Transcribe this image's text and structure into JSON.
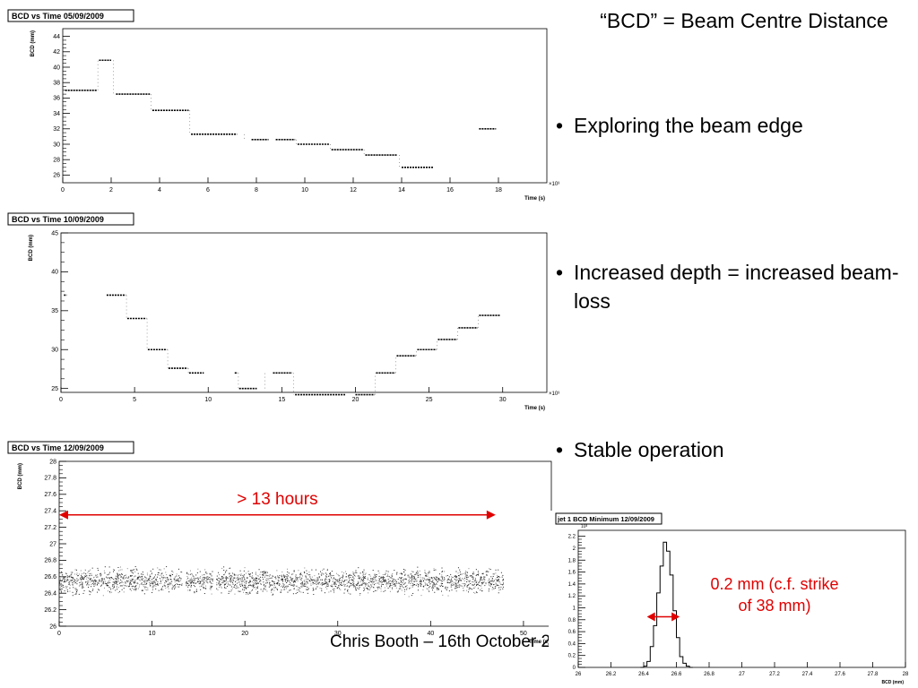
{
  "heading": "“BCD” = Beam Centre Distance",
  "bullets": [
    "Exploring the beam edge",
    "Increased depth = increased beam-loss",
    "Stable operation"
  ],
  "footer": "Chris Booth – 16th October 2",
  "annotations": {
    "span_label": "> 13 hours",
    "width_label_line1": "0.2 mm (c.f. strike",
    "width_label_line2": "of 38 mm)"
  },
  "colors": {
    "annotation": "#e00000",
    "axis": "#000000",
    "data": "#000000"
  },
  "chart_data": [
    {
      "type": "scatter",
      "title": "BCD vs Time 05/09/2009",
      "xlabel": "Time (s)",
      "ylabel": "BCD (mm)",
      "x_exponent": "×10³",
      "xlim": [
        0,
        20
      ],
      "ylim": [
        25,
        45
      ],
      "x_ticks": [
        0,
        2,
        4,
        6,
        8,
        10,
        12,
        14,
        16,
        18
      ],
      "y_ticks": [
        26,
        28,
        30,
        32,
        34,
        36,
        38,
        40,
        42,
        44
      ],
      "steps": [
        {
          "x0": 0.1,
          "x1": 1.4,
          "y": 37.0
        },
        {
          "x0": 1.5,
          "x1": 2.0,
          "y": 40.9
        },
        {
          "x0": 2.2,
          "x1": 3.6,
          "y": 36.5
        },
        {
          "x0": 3.7,
          "x1": 5.2,
          "y": 34.4
        },
        {
          "x0": 5.3,
          "x1": 7.2,
          "y": 31.3
        },
        {
          "x0": 7.8,
          "x1": 8.5,
          "y": 30.6
        },
        {
          "x0": 8.8,
          "x1": 9.6,
          "y": 30.6
        },
        {
          "x0": 9.7,
          "x1": 11.0,
          "y": 30.0
        },
        {
          "x0": 11.1,
          "x1": 12.4,
          "y": 29.3
        },
        {
          "x0": 12.5,
          "x1": 13.8,
          "y": 28.6
        },
        {
          "x0": 14.0,
          "x1": 15.3,
          "y": 27.0
        },
        {
          "x0": 17.2,
          "x1": 17.9,
          "y": 32.0
        }
      ]
    },
    {
      "type": "scatter",
      "title": "BCD vs Time 10/09/2009",
      "xlabel": "Time (s)",
      "ylabel": "BCD (mm)",
      "x_exponent": "×10³",
      "xlim": [
        0,
        33
      ],
      "ylim": [
        24.5,
        45
      ],
      "x_ticks": [
        0,
        5,
        10,
        15,
        20,
        25,
        30
      ],
      "y_ticks": [
        25,
        30,
        35,
        40,
        45
      ],
      "steps": [
        {
          "x0": 0.2,
          "x1": 0.4,
          "y": 37.0
        },
        {
          "x0": 3.1,
          "x1": 4.4,
          "y": 37.0
        },
        {
          "x0": 4.5,
          "x1": 5.8,
          "y": 34.0
        },
        {
          "x0": 5.9,
          "x1": 7.2,
          "y": 30.0
        },
        {
          "x0": 7.3,
          "x1": 8.6,
          "y": 27.6
        },
        {
          "x0": 8.7,
          "x1": 9.7,
          "y": 27.0
        },
        {
          "x0": 11.8,
          "x1": 12.0,
          "y": 27.0
        },
        {
          "x0": 12.1,
          "x1": 13.3,
          "y": 25.0
        },
        {
          "x0": 14.4,
          "x1": 15.7,
          "y": 27.0
        },
        {
          "x0": 15.9,
          "x1": 19.3,
          "y": 24.2
        },
        {
          "x0": 20.0,
          "x1": 21.3,
          "y": 24.2
        },
        {
          "x0": 21.4,
          "x1": 22.7,
          "y": 27.0
        },
        {
          "x0": 22.8,
          "x1": 24.1,
          "y": 29.2
        },
        {
          "x0": 24.2,
          "x1": 25.5,
          "y": 30.0
        },
        {
          "x0": 25.6,
          "x1": 26.9,
          "y": 31.3
        },
        {
          "x0": 27.0,
          "x1": 28.3,
          "y": 32.8
        },
        {
          "x0": 28.4,
          "x1": 29.8,
          "y": 34.4
        }
      ]
    },
    {
      "type": "scatter",
      "title": "BCD vs Time 12/09/2009",
      "xlabel": "Time (s)",
      "ylabel": "BCD (mm)",
      "x_exponent": "",
      "xlim": [
        0,
        53
      ],
      "ylim": [
        26,
        28
      ],
      "x_ticks": [
        0,
        10,
        20,
        30,
        40,
        50
      ],
      "y_ticks": [
        26,
        26.2,
        26.4,
        26.6,
        26.8,
        27,
        27.2,
        27.4,
        27.6,
        27.8,
        28
      ],
      "band": {
        "x0": 0,
        "x1": 47.8,
        "center": 26.55,
        "spread": 0.2,
        "gaps": [
          13.2,
          16.5
        ]
      },
      "arrow": {
        "x0": 0,
        "x1": 47,
        "y": 27.35
      }
    },
    {
      "type": "bar",
      "title": "jet 1 BCD Minimum 12/09/2009",
      "xlabel": "BCD (mm)",
      "ylabel": "",
      "y_exponent": "10³",
      "xlim": [
        26,
        28
      ],
      "ylim": [
        0,
        2.3
      ],
      "x_ticks": [
        26,
        26.2,
        26.4,
        26.6,
        26.8,
        27,
        27.2,
        27.4,
        27.6,
        27.8,
        28
      ],
      "y_ticks": [
        0,
        0.2,
        0.4,
        0.6,
        0.8,
        1,
        1.2,
        1.4,
        1.6,
        1.8,
        2,
        2.2
      ],
      "bin_start": 26.38,
      "bin_width": 0.02,
      "values": [
        0.0,
        0.02,
        0.1,
        0.35,
        0.7,
        1.25,
        1.7,
        2.1,
        1.95,
        1.55,
        0.95,
        0.5,
        0.18,
        0.07,
        0.02,
        0.0
      ],
      "arrow": {
        "x0": 26.42,
        "x1": 26.62,
        "y": 0.85
      }
    }
  ]
}
